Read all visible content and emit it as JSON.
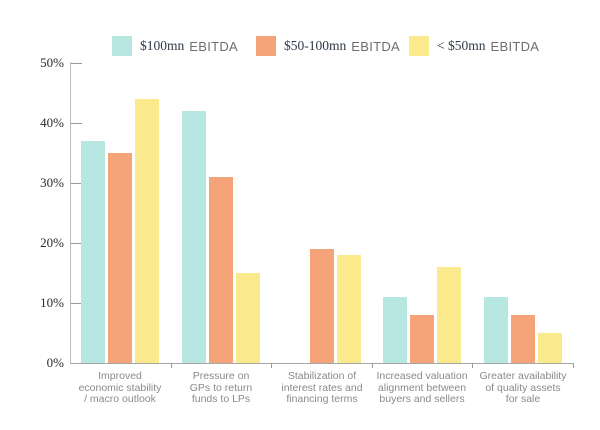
{
  "chart_data": {
    "type": "bar",
    "title": "",
    "legend_position": "top",
    "grid": false,
    "unit": "%",
    "y_axis": {
      "min": 0,
      "max": 50,
      "tick_labels": [
        "0%",
        "10%",
        "20%",
        "30%",
        "40%",
        "50%"
      ]
    },
    "categories": [
      {
        "label": "Improved economic stability / macro outlook",
        "lines": [
          "Improved",
          "economic stability",
          "/ macro outlook"
        ]
      },
      {
        "label": "Pressure on GPs to return funds to LPs",
        "lines": [
          "Pressure on",
          "GPs to return",
          "funds to LPs"
        ]
      },
      {
        "label": "Stabilization of interest rates and financing terms",
        "lines": [
          "Stabilization of",
          "interest rates and",
          "financing terms"
        ]
      },
      {
        "label": "Increased valuation alignment between buyers and sellers",
        "lines": [
          "Increased valuation",
          "alignment between",
          "buyers and sellers"
        ]
      },
      {
        "label": "Greater availability of quality assets for sale",
        "lines": [
          "Greater availability",
          "of quality assets",
          "for sale"
        ]
      }
    ],
    "series": [
      {
        "name": "$100mn EBITDA",
        "amount": "$100mn",
        "suffix": "EBITDA",
        "color": "#b8e6e1",
        "values": [
          37,
          42,
          null,
          11,
          11
        ]
      },
      {
        "name": "$50-100mn EBITDA",
        "amount": "$50-100mn",
        "suffix": "EBITDA",
        "color": "#f4a478",
        "values": [
          35,
          31,
          19,
          8,
          8
        ]
      },
      {
        "name": "< $50mn EBITDA",
        "amount": "< $50mn",
        "suffix": "EBITDA",
        "color": "#fae98d",
        "values": [
          44,
          15,
          18,
          16,
          5
        ]
      }
    ],
    "colors": {
      "axis_line": "#bdbdbd",
      "baseline": "#a6a6a6",
      "tick": "#9a9a9a",
      "y_label_text": "#2b2b2b",
      "category_text": "#8a8a8a",
      "legend_amount_text": "#2e3a48",
      "legend_suffix_text": "#6e6e6e"
    }
  }
}
